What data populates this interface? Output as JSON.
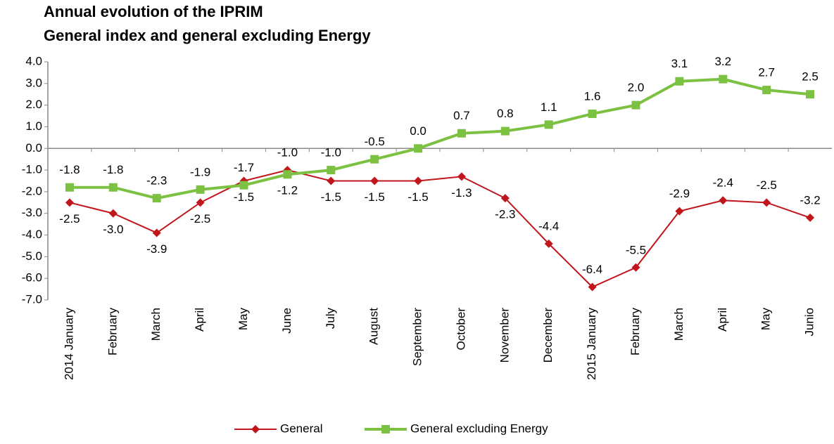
{
  "chart_data": {
    "type": "line",
    "title": "Annual evolution of the IPRIM",
    "subtitle": "General index and general excluding Energy",
    "categories": [
      "2014 January",
      "February",
      "March",
      "April",
      "May",
      "June",
      "July",
      "August",
      "September",
      "October",
      "November",
      "December",
      "2015 January",
      "February",
      "March",
      "April",
      "May",
      "Junio"
    ],
    "series": [
      {
        "name": "General",
        "color": "#c0161c",
        "marker": "diamond",
        "values": [
          -2.5,
          -3.0,
          -3.9,
          -2.5,
          -1.5,
          -1.0,
          -1.5,
          -1.5,
          -1.5,
          -1.3,
          -2.3,
          -4.4,
          -6.4,
          -5.5,
          -2.9,
          -2.4,
          -2.5,
          -3.2
        ],
        "value_labels": [
          "-2.5",
          "-3.0",
          "-3.9",
          "-2.5",
          "-1.5",
          "-1.0",
          "-1.5",
          "-1.5",
          "-1.5",
          "-1.3",
          "-2.3",
          "-4.4",
          "-6.4",
          "-5.5",
          "-2.9",
          "-2.4",
          "-2.5",
          "-3.2"
        ]
      },
      {
        "name": "General excluding Energy",
        "color": "#7cc142",
        "marker": "square",
        "values": [
          -1.8,
          -1.8,
          -2.3,
          -1.9,
          -1.7,
          -1.2,
          -1.0,
          -0.5,
          0.0,
          0.7,
          0.8,
          1.1,
          1.6,
          2.0,
          3.1,
          3.2,
          2.7,
          2.5
        ],
        "value_labels": [
          "-1.8",
          "-1.8",
          "-2.3",
          "-1.9",
          "-1.7",
          "-1.2",
          "-1.0",
          "-0.5",
          "0.0",
          "0.7",
          "0.8",
          "1.1",
          "1.6",
          "2.0",
          "3.1",
          "3.2",
          "2.7",
          "2.5"
        ]
      }
    ],
    "ylim": [
      -7,
      4
    ],
    "yticks": [
      {
        "value": 4,
        "label": "4.0"
      },
      {
        "value": 3,
        "label": "3.0"
      },
      {
        "value": 2,
        "label": "2.0"
      },
      {
        "value": 1,
        "label": "1.0"
      },
      {
        "value": 0,
        "label": "0.0"
      },
      {
        "value": -1,
        "label": "-1.0"
      },
      {
        "value": -2,
        "label": "-2.0"
      },
      {
        "value": -3,
        "label": "-3.0"
      },
      {
        "value": -4,
        "label": "-4.0"
      },
      {
        "value": -5,
        "label": "-5.0"
      },
      {
        "value": -6,
        "label": "-6.0"
      },
      {
        "value": -7,
        "label": "-7.0"
      }
    ],
    "legend": "bottom"
  }
}
